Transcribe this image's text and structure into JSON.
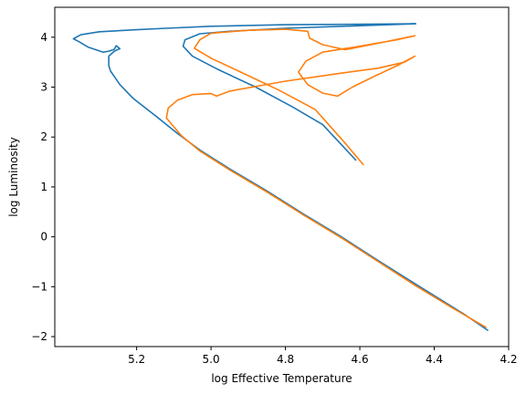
{
  "chart_data": {
    "type": "line",
    "title": "",
    "xlabel": "log Effective Temperature",
    "ylabel": "log Luminosity",
    "x_inverted": true,
    "xlim": [
      5.42,
      4.2
    ],
    "ylim": [
      -2.2,
      4.6
    ],
    "x_ticks": [
      5.2,
      5.0,
      4.8,
      4.6,
      4.4,
      4.2
    ],
    "x_tick_labels": [
      "5.2",
      "5.0",
      "4.8",
      "4.6",
      "4.4",
      "4.2"
    ],
    "y_ticks": [
      4,
      3,
      2,
      1,
      0,
      -1,
      -2
    ],
    "y_tick_labels": [
      "4",
      "3",
      "2",
      "1",
      "0",
      "−1",
      "−2"
    ],
    "grid": false,
    "legend": false,
    "series": [
      {
        "color": "#1f77b4",
        "points": [
          [
            4.255,
            -1.88
          ],
          [
            4.32,
            -1.55
          ],
          [
            4.45,
            -0.95
          ],
          [
            4.55,
            -0.48
          ],
          [
            4.65,
            0.0
          ],
          [
            4.75,
            0.45
          ],
          [
            4.85,
            0.92
          ],
          [
            4.95,
            1.36
          ],
          [
            5.03,
            1.74
          ],
          [
            5.09,
            2.07
          ],
          [
            5.15,
            2.43
          ],
          [
            5.21,
            2.78
          ],
          [
            5.245,
            3.05
          ],
          [
            5.27,
            3.32
          ],
          [
            5.275,
            3.43
          ],
          [
            5.275,
            3.62
          ],
          [
            5.26,
            3.72
          ],
          [
            5.245,
            3.77
          ],
          [
            5.255,
            3.83
          ],
          [
            5.26,
            3.76
          ],
          [
            5.275,
            3.72
          ],
          [
            5.29,
            3.7
          ],
          [
            5.33,
            3.8
          ],
          [
            5.355,
            3.91
          ],
          [
            5.37,
            3.97
          ],
          [
            5.35,
            4.05
          ],
          [
            5.3,
            4.11
          ],
          [
            5.2,
            4.15
          ],
          [
            5.12,
            4.18
          ],
          [
            5.0,
            4.22
          ],
          [
            4.8,
            4.25
          ],
          [
            4.6,
            4.26
          ],
          [
            4.45,
            4.27
          ],
          [
            4.6,
            4.23
          ],
          [
            4.8,
            4.18
          ],
          [
            4.95,
            4.12
          ],
          [
            5.03,
            4.07
          ],
          [
            5.07,
            3.95
          ],
          [
            5.075,
            3.82
          ],
          [
            5.05,
            3.62
          ],
          [
            4.98,
            3.35
          ],
          [
            4.88,
            3.0
          ],
          [
            4.78,
            2.6
          ],
          [
            4.7,
            2.25
          ],
          [
            4.61,
            1.53
          ]
        ]
      },
      {
        "color": "#ff7f0e",
        "points": [
          [
            4.26,
            -1.82
          ],
          [
            4.35,
            -1.43
          ],
          [
            4.45,
            -0.98
          ],
          [
            4.55,
            -0.5
          ],
          [
            4.65,
            -0.02
          ],
          [
            4.75,
            0.43
          ],
          [
            4.85,
            0.9
          ],
          [
            4.95,
            1.34
          ],
          [
            5.03,
            1.72
          ],
          [
            5.08,
            2.03
          ],
          [
            5.12,
            2.38
          ],
          [
            5.115,
            2.58
          ],
          [
            5.09,
            2.74
          ],
          [
            5.05,
            2.85
          ],
          [
            5.0,
            2.87
          ],
          [
            4.985,
            2.82
          ],
          [
            4.95,
            2.92
          ],
          [
            4.8,
            3.12
          ],
          [
            4.65,
            3.28
          ],
          [
            4.55,
            3.38
          ],
          [
            4.48,
            3.5
          ],
          [
            4.452,
            3.62
          ],
          [
            4.5,
            3.43
          ],
          [
            4.56,
            3.22
          ],
          [
            4.62,
            3.0
          ],
          [
            4.66,
            2.82
          ],
          [
            4.7,
            2.88
          ],
          [
            4.74,
            3.05
          ],
          [
            4.765,
            3.3
          ],
          [
            4.745,
            3.52
          ],
          [
            4.7,
            3.7
          ],
          [
            4.6,
            3.82
          ],
          [
            4.5,
            3.95
          ],
          [
            4.452,
            4.03
          ],
          [
            4.55,
            3.88
          ],
          [
            4.64,
            3.75
          ],
          [
            4.7,
            3.85
          ],
          [
            4.735,
            3.98
          ],
          [
            4.74,
            4.12
          ],
          [
            4.8,
            4.16
          ],
          [
            4.9,
            4.14
          ],
          [
            5.0,
            4.08
          ],
          [
            5.03,
            3.95
          ],
          [
            5.045,
            3.78
          ],
          [
            5.0,
            3.58
          ],
          [
            4.92,
            3.3
          ],
          [
            4.82,
            2.95
          ],
          [
            4.72,
            2.55
          ],
          [
            4.64,
            1.88
          ],
          [
            4.59,
            1.44
          ]
        ]
      }
    ]
  }
}
